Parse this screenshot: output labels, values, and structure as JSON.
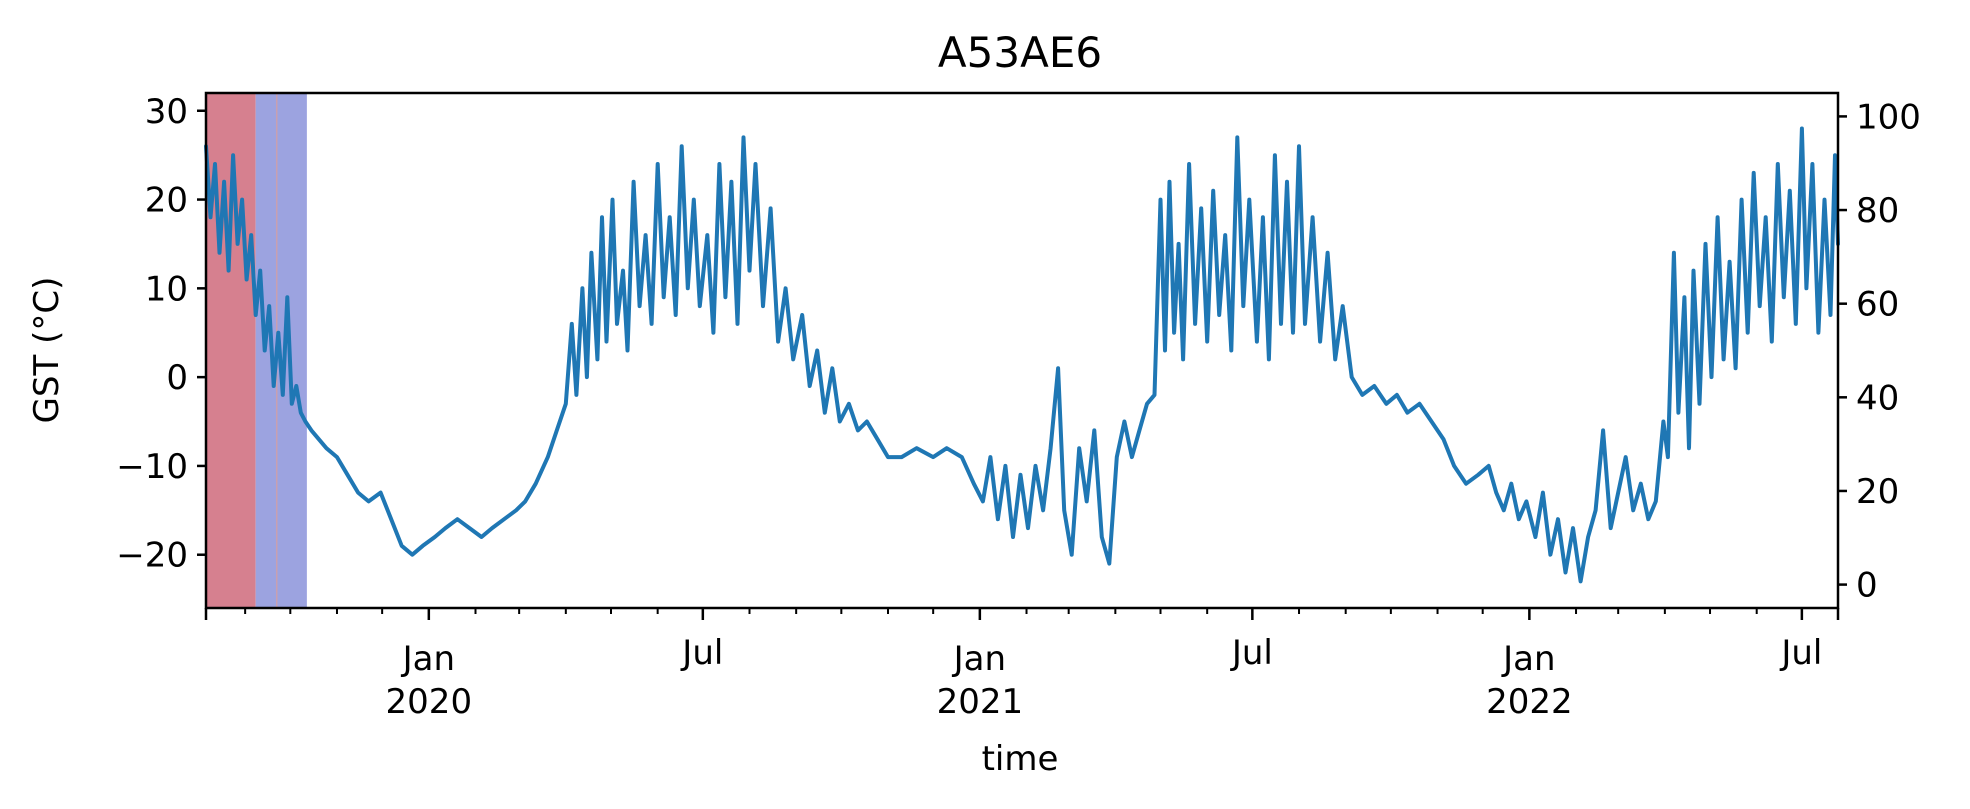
{
  "chart_data": {
    "type": "line",
    "title": "A53AE6",
    "xlabel": "time",
    "ylabel": "GST (°C)",
    "x_range": [
      "2019-08-06",
      "2022-07-25"
    ],
    "ylim": [
      -26,
      32
    ],
    "y_ticks": [
      -20,
      -10,
      0,
      10,
      20,
      30
    ],
    "y_tick_labels": [
      "−20",
      "−10",
      "0",
      "10",
      "20",
      "30"
    ],
    "y2lim": [
      -5,
      105
    ],
    "y2_ticks": [
      0,
      20,
      40,
      60,
      80,
      100
    ],
    "y2_tick_labels": [
      "0",
      "20",
      "40",
      "60",
      "80",
      "100"
    ],
    "x_major_ticks": [
      {
        "date": "2020-01-01",
        "label": [
          "Jan",
          "2020"
        ]
      },
      {
        "date": "2020-07-01",
        "label": [
          "Jul"
        ]
      },
      {
        "date": "2021-01-01",
        "label": [
          "Jan",
          "2021"
        ]
      },
      {
        "date": "2021-07-01",
        "label": [
          "Jul"
        ]
      },
      {
        "date": "2022-01-01",
        "label": [
          "Jan",
          "2022"
        ]
      },
      {
        "date": "2022-07-01",
        "label": [
          "Jul"
        ]
      }
    ],
    "x_minor_ticks": [
      "2019-09-01",
      "2019-10-01",
      "2019-11-01",
      "2019-12-01",
      "2020-02-01",
      "2020-03-01",
      "2020-04-01",
      "2020-05-01",
      "2020-06-01",
      "2020-08-01",
      "2020-09-01",
      "2020-10-01",
      "2020-11-01",
      "2020-12-01",
      "2021-02-01",
      "2021-03-01",
      "2021-04-01",
      "2021-05-01",
      "2021-06-01",
      "2021-08-01",
      "2021-09-01",
      "2021-10-01",
      "2021-11-01",
      "2021-12-01",
      "2022-02-01",
      "2022-03-01",
      "2022-04-01",
      "2022-05-01",
      "2022-06-01"
    ],
    "shaded_spans": [
      {
        "start": "2019-08-06",
        "end": "2019-09-08",
        "color": "#d6808f"
      },
      {
        "start": "2019-09-08",
        "end": "2019-10-12",
        "color": "#9ca3e0"
      }
    ],
    "span_marker": {
      "date": "2019-09-22",
      "color": "#c9a0b0"
    },
    "series": [
      {
        "color": "#1f77b4",
        "points": [
          [
            "2019-08-06",
            26
          ],
          [
            "2019-08-09",
            18
          ],
          [
            "2019-08-12",
            24
          ],
          [
            "2019-08-15",
            14
          ],
          [
            "2019-08-18",
            22
          ],
          [
            "2019-08-21",
            12
          ],
          [
            "2019-08-24",
            25
          ],
          [
            "2019-08-27",
            15
          ],
          [
            "2019-08-30",
            20
          ],
          [
            "2019-09-02",
            11
          ],
          [
            "2019-09-05",
            16
          ],
          [
            "2019-09-08",
            7
          ],
          [
            "2019-09-11",
            12
          ],
          [
            "2019-09-14",
            3
          ],
          [
            "2019-09-17",
            8
          ],
          [
            "2019-09-20",
            -1
          ],
          [
            "2019-09-23",
            5
          ],
          [
            "2019-09-26",
            -2
          ],
          [
            "2019-09-29",
            9
          ],
          [
            "2019-10-02",
            -3
          ],
          [
            "2019-10-05",
            -1
          ],
          [
            "2019-10-08",
            -4
          ],
          [
            "2019-10-11",
            -5
          ],
          [
            "2019-10-15",
            -6
          ],
          [
            "2019-10-20",
            -7
          ],
          [
            "2019-10-25",
            -8
          ],
          [
            "2019-11-01",
            -9
          ],
          [
            "2019-11-08",
            -11
          ],
          [
            "2019-11-15",
            -13
          ],
          [
            "2019-11-22",
            -14
          ],
          [
            "2019-11-30",
            -13
          ],
          [
            "2019-12-07",
            -16
          ],
          [
            "2019-12-14",
            -19
          ],
          [
            "2019-12-21",
            -20
          ],
          [
            "2019-12-28",
            -19
          ],
          [
            "2020-01-05",
            -18
          ],
          [
            "2020-01-12",
            -17
          ],
          [
            "2020-01-20",
            -16
          ],
          [
            "2020-01-28",
            -17
          ],
          [
            "2020-02-05",
            -18
          ],
          [
            "2020-02-12",
            -17
          ],
          [
            "2020-02-20",
            -16
          ],
          [
            "2020-02-28",
            -15
          ],
          [
            "2020-03-05",
            -14
          ],
          [
            "2020-03-12",
            -12
          ],
          [
            "2020-03-20",
            -9
          ],
          [
            "2020-03-26",
            -6
          ],
          [
            "2020-04-01",
            -3
          ],
          [
            "2020-04-05",
            6
          ],
          [
            "2020-04-08",
            -2
          ],
          [
            "2020-04-12",
            10
          ],
          [
            "2020-04-15",
            0
          ],
          [
            "2020-04-18",
            14
          ],
          [
            "2020-04-22",
            2
          ],
          [
            "2020-04-25",
            18
          ],
          [
            "2020-04-28",
            4
          ],
          [
            "2020-05-02",
            20
          ],
          [
            "2020-05-05",
            6
          ],
          [
            "2020-05-09",
            12
          ],
          [
            "2020-05-12",
            3
          ],
          [
            "2020-05-16",
            22
          ],
          [
            "2020-05-20",
            8
          ],
          [
            "2020-05-24",
            16
          ],
          [
            "2020-05-28",
            6
          ],
          [
            "2020-06-01",
            24
          ],
          [
            "2020-06-05",
            9
          ],
          [
            "2020-06-09",
            18
          ],
          [
            "2020-06-13",
            7
          ],
          [
            "2020-06-17",
            26
          ],
          [
            "2020-06-21",
            10
          ],
          [
            "2020-06-25",
            20
          ],
          [
            "2020-06-29",
            8
          ],
          [
            "2020-07-04",
            16
          ],
          [
            "2020-07-08",
            5
          ],
          [
            "2020-07-12",
            24
          ],
          [
            "2020-07-16",
            9
          ],
          [
            "2020-07-20",
            22
          ],
          [
            "2020-07-24",
            6
          ],
          [
            "2020-07-28",
            27
          ],
          [
            "2020-08-01",
            12
          ],
          [
            "2020-08-05",
            24
          ],
          [
            "2020-08-10",
            8
          ],
          [
            "2020-08-15",
            19
          ],
          [
            "2020-08-20",
            4
          ],
          [
            "2020-08-25",
            10
          ],
          [
            "2020-08-30",
            2
          ],
          [
            "2020-09-05",
            7
          ],
          [
            "2020-09-10",
            -1
          ],
          [
            "2020-09-15",
            3
          ],
          [
            "2020-09-20",
            -4
          ],
          [
            "2020-09-25",
            1
          ],
          [
            "2020-09-30",
            -5
          ],
          [
            "2020-10-06",
            -3
          ],
          [
            "2020-10-12",
            -6
          ],
          [
            "2020-10-18",
            -5
          ],
          [
            "2020-10-25",
            -7
          ],
          [
            "2020-11-01",
            -9
          ],
          [
            "2020-11-10",
            -9
          ],
          [
            "2020-11-20",
            -8
          ],
          [
            "2020-12-01",
            -9
          ],
          [
            "2020-12-10",
            -8
          ],
          [
            "2020-12-20",
            -9
          ],
          [
            "2020-12-28",
            -12
          ],
          [
            "2021-01-03",
            -14
          ],
          [
            "2021-01-08",
            -9
          ],
          [
            "2021-01-13",
            -16
          ],
          [
            "2021-01-18",
            -10
          ],
          [
            "2021-01-23",
            -18
          ],
          [
            "2021-01-28",
            -11
          ],
          [
            "2021-02-02",
            -17
          ],
          [
            "2021-02-07",
            -10
          ],
          [
            "2021-02-12",
            -15
          ],
          [
            "2021-02-17",
            -8
          ],
          [
            "2021-02-22",
            1
          ],
          [
            "2021-02-26",
            -15
          ],
          [
            "2021-03-03",
            -20
          ],
          [
            "2021-03-08",
            -8
          ],
          [
            "2021-03-13",
            -14
          ],
          [
            "2021-03-18",
            -6
          ],
          [
            "2021-03-23",
            -18
          ],
          [
            "2021-03-28",
            -21
          ],
          [
            "2021-04-02",
            -9
          ],
          [
            "2021-04-07",
            -5
          ],
          [
            "2021-04-12",
            -9
          ],
          [
            "2021-04-17",
            -6
          ],
          [
            "2021-04-22",
            -3
          ],
          [
            "2021-04-27",
            -2
          ],
          [
            "2021-05-01",
            20
          ],
          [
            "2021-05-04",
            3
          ],
          [
            "2021-05-07",
            22
          ],
          [
            "2021-05-10",
            5
          ],
          [
            "2021-05-13",
            15
          ],
          [
            "2021-05-16",
            2
          ],
          [
            "2021-05-20",
            24
          ],
          [
            "2021-05-24",
            6
          ],
          [
            "2021-05-28",
            19
          ],
          [
            "2021-06-01",
            4
          ],
          [
            "2021-06-05",
            21
          ],
          [
            "2021-06-09",
            7
          ],
          [
            "2021-06-13",
            16
          ],
          [
            "2021-06-17",
            3
          ],
          [
            "2021-06-21",
            27
          ],
          [
            "2021-06-25",
            8
          ],
          [
            "2021-06-29",
            20
          ],
          [
            "2021-07-04",
            4
          ],
          [
            "2021-07-08",
            18
          ],
          [
            "2021-07-12",
            2
          ],
          [
            "2021-07-16",
            25
          ],
          [
            "2021-07-20",
            6
          ],
          [
            "2021-07-24",
            22
          ],
          [
            "2021-07-28",
            5
          ],
          [
            "2021-08-01",
            26
          ],
          [
            "2021-08-05",
            6
          ],
          [
            "2021-08-10",
            18
          ],
          [
            "2021-08-15",
            4
          ],
          [
            "2021-08-20",
            14
          ],
          [
            "2021-08-25",
            2
          ],
          [
            "2021-08-30",
            8
          ],
          [
            "2021-09-05",
            0
          ],
          [
            "2021-09-12",
            -2
          ],
          [
            "2021-09-20",
            -1
          ],
          [
            "2021-09-28",
            -3
          ],
          [
            "2021-10-05",
            -2
          ],
          [
            "2021-10-12",
            -4
          ],
          [
            "2021-10-20",
            -3
          ],
          [
            "2021-10-28",
            -5
          ],
          [
            "2021-11-05",
            -7
          ],
          [
            "2021-11-12",
            -10
          ],
          [
            "2021-11-20",
            -12
          ],
          [
            "2021-11-28",
            -11
          ],
          [
            "2021-12-05",
            -10
          ],
          [
            "2021-12-10",
            -13
          ],
          [
            "2021-12-15",
            -15
          ],
          [
            "2021-12-20",
            -12
          ],
          [
            "2021-12-25",
            -16
          ],
          [
            "2021-12-30",
            -14
          ],
          [
            "2022-01-05",
            -18
          ],
          [
            "2022-01-10",
            -13
          ],
          [
            "2022-01-15",
            -20
          ],
          [
            "2022-01-20",
            -16
          ],
          [
            "2022-01-25",
            -22
          ],
          [
            "2022-01-30",
            -17
          ],
          [
            "2022-02-04",
            -23
          ],
          [
            "2022-02-09",
            -18
          ],
          [
            "2022-02-14",
            -15
          ],
          [
            "2022-02-19",
            -6
          ],
          [
            "2022-02-24",
            -17
          ],
          [
            "2022-03-01",
            -13
          ],
          [
            "2022-03-06",
            -9
          ],
          [
            "2022-03-11",
            -15
          ],
          [
            "2022-03-16",
            -12
          ],
          [
            "2022-03-21",
            -16
          ],
          [
            "2022-03-26",
            -14
          ],
          [
            "2022-03-31",
            -5
          ],
          [
            "2022-04-03",
            -9
          ],
          [
            "2022-04-07",
            14
          ],
          [
            "2022-04-10",
            -4
          ],
          [
            "2022-04-14",
            9
          ],
          [
            "2022-04-17",
            -8
          ],
          [
            "2022-04-20",
            12
          ],
          [
            "2022-04-24",
            -3
          ],
          [
            "2022-04-28",
            15
          ],
          [
            "2022-05-02",
            0
          ],
          [
            "2022-05-06",
            18
          ],
          [
            "2022-05-10",
            2
          ],
          [
            "2022-05-14",
            13
          ],
          [
            "2022-05-18",
            1
          ],
          [
            "2022-05-22",
            20
          ],
          [
            "2022-05-26",
            5
          ],
          [
            "2022-05-30",
            23
          ],
          [
            "2022-06-03",
            8
          ],
          [
            "2022-06-07",
            18
          ],
          [
            "2022-06-11",
            4
          ],
          [
            "2022-06-15",
            24
          ],
          [
            "2022-06-19",
            9
          ],
          [
            "2022-06-23",
            21
          ],
          [
            "2022-06-27",
            6
          ],
          [
            "2022-07-01",
            28
          ],
          [
            "2022-07-04",
            10
          ],
          [
            "2022-07-08",
            24
          ],
          [
            "2022-07-12",
            5
          ],
          [
            "2022-07-16",
            20
          ],
          [
            "2022-07-20",
            7
          ],
          [
            "2022-07-23",
            25
          ],
          [
            "2022-07-25",
            15
          ]
        ]
      }
    ]
  }
}
